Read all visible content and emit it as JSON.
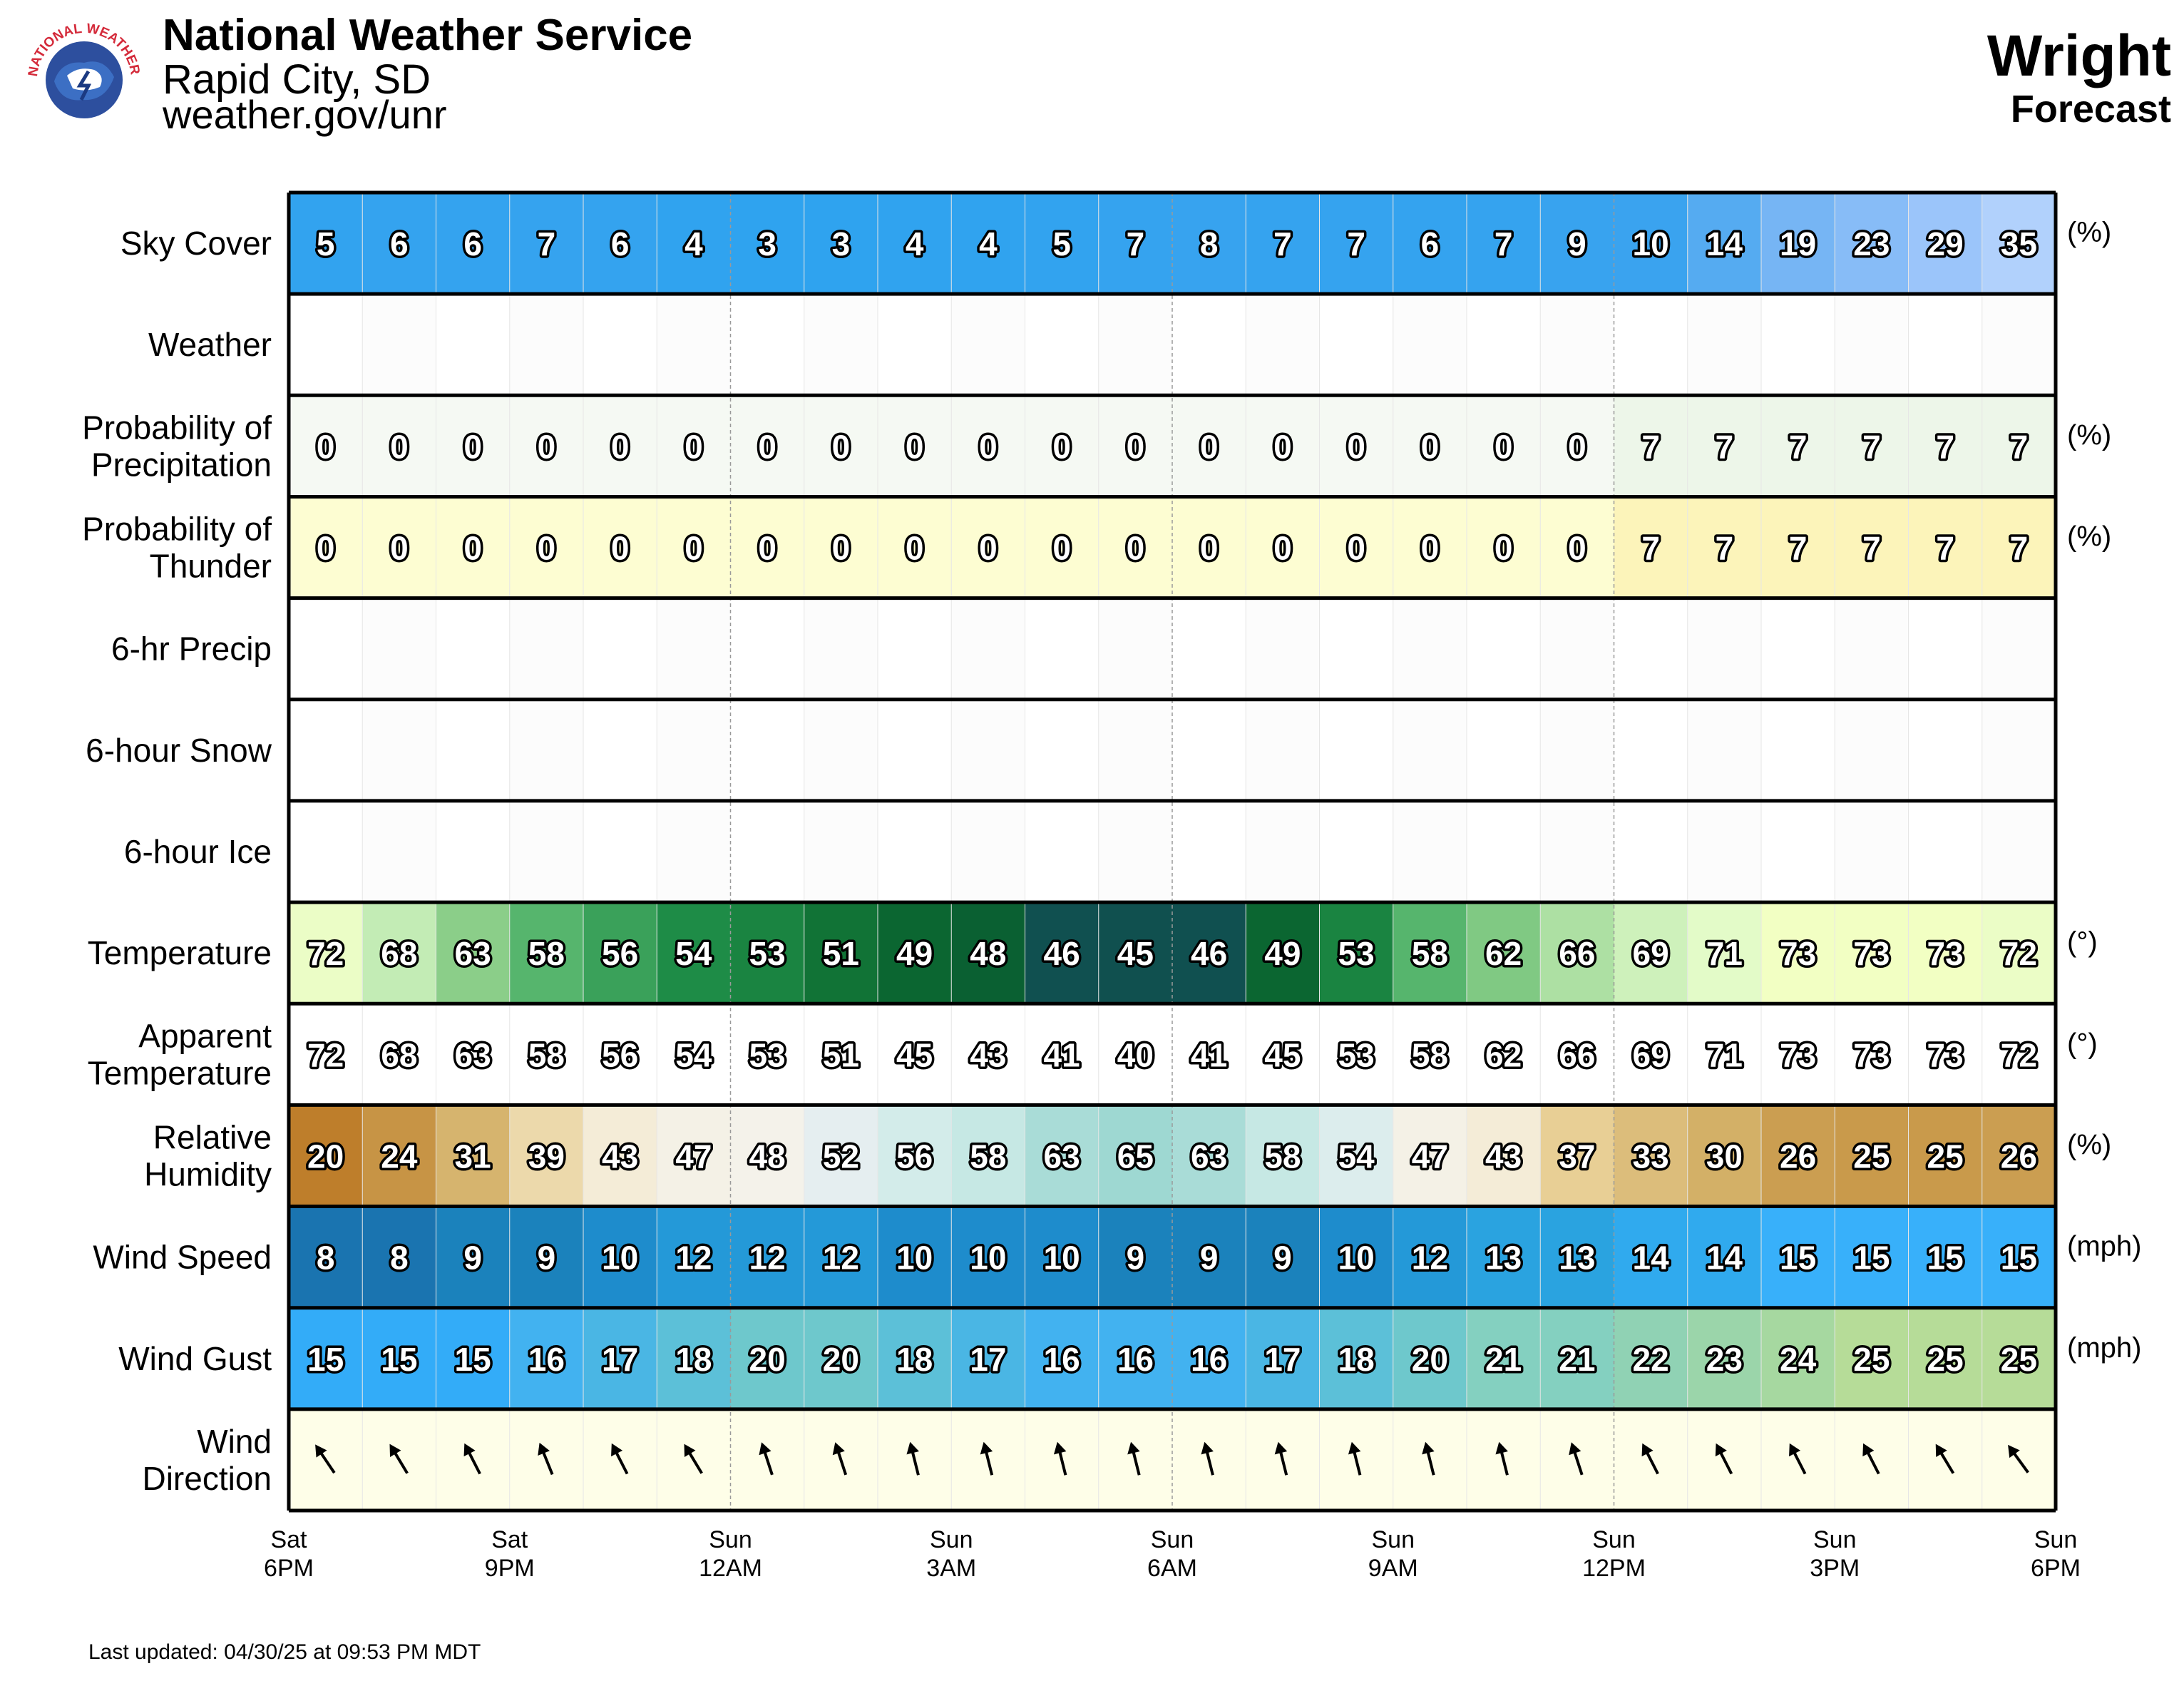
{
  "header": {
    "agency": "National Weather Service",
    "office": "Rapid City, SD",
    "url": "weather.gov/unr",
    "location": "Wright",
    "subtitle": "Forecast",
    "logo_icon": "nws-logo-icon",
    "logo_text": "NATIONAL WEATHER SERVICE"
  },
  "footer": {
    "last_updated": "Last updated: 04/30/25 at 09:53 PM MDT"
  },
  "chart_data": {
    "type": "table",
    "x_ticks": [
      {
        "day": "Sat",
        "time": "6PM"
      },
      {
        "day": "Sat",
        "time": "9PM"
      },
      {
        "day": "Sun",
        "time": "12AM"
      },
      {
        "day": "Sun",
        "time": "3AM"
      },
      {
        "day": "Sun",
        "time": "6AM"
      },
      {
        "day": "Sun",
        "time": "9AM"
      },
      {
        "day": "Sun",
        "time": "12PM"
      },
      {
        "day": "Sun",
        "time": "3PM"
      },
      {
        "day": "Sun",
        "time": "6PM"
      }
    ],
    "hours_per_column": 1,
    "rows": [
      {
        "label": [
          "Sky Cover"
        ],
        "unit": "(%)",
        "kind": "sky",
        "values": [
          5,
          6,
          6,
          7,
          6,
          4,
          3,
          3,
          4,
          4,
          5,
          7,
          8,
          7,
          7,
          6,
          7,
          9,
          10,
          14,
          19,
          23,
          29,
          35
        ]
      },
      {
        "label": [
          "Weather"
        ],
        "unit": "",
        "kind": "blank",
        "values": []
      },
      {
        "label": [
          "Probability of",
          "Precipitation"
        ],
        "unit": "(%)",
        "kind": "pop",
        "values": [
          0,
          0,
          0,
          0,
          0,
          0,
          0,
          0,
          0,
          0,
          0,
          0,
          0,
          0,
          0,
          0,
          0,
          0,
          7,
          7,
          7,
          7,
          7,
          7
        ]
      },
      {
        "label": [
          "Probability of",
          "Thunder"
        ],
        "unit": "(%)",
        "kind": "thunder",
        "values": [
          0,
          0,
          0,
          0,
          0,
          0,
          0,
          0,
          0,
          0,
          0,
          0,
          0,
          0,
          0,
          0,
          0,
          0,
          7,
          7,
          7,
          7,
          7,
          7
        ]
      },
      {
        "label": [
          "6-hr Precip"
        ],
        "unit": "",
        "kind": "blank",
        "values": []
      },
      {
        "label": [
          "6-hour Snow"
        ],
        "unit": "",
        "kind": "blank",
        "values": []
      },
      {
        "label": [
          "6-hour Ice"
        ],
        "unit": "",
        "kind": "blank",
        "values": []
      },
      {
        "label": [
          "Temperature"
        ],
        "unit": "(°)",
        "kind": "temp",
        "values": [
          72,
          68,
          63,
          58,
          56,
          54,
          53,
          51,
          49,
          48,
          46,
          45,
          46,
          49,
          53,
          58,
          62,
          66,
          69,
          71,
          73,
          73,
          73,
          72
        ]
      },
      {
        "label": [
          "Apparent",
          "Temperature"
        ],
        "unit": "(°)",
        "kind": "apparent",
        "values": [
          72,
          68,
          63,
          58,
          56,
          54,
          53,
          51,
          45,
          43,
          41,
          40,
          41,
          45,
          53,
          58,
          62,
          66,
          69,
          71,
          73,
          73,
          73,
          72
        ]
      },
      {
        "label": [
          "Relative",
          "Humidity"
        ],
        "unit": "(%)",
        "kind": "rh",
        "values": [
          20,
          24,
          31,
          39,
          43,
          47,
          48,
          52,
          56,
          58,
          63,
          65,
          63,
          58,
          54,
          47,
          43,
          37,
          33,
          30,
          26,
          25,
          25,
          26
        ]
      },
      {
        "label": [
          "Wind Speed"
        ],
        "unit": "(mph)",
        "kind": "wind",
        "values": [
          8,
          8,
          9,
          9,
          10,
          12,
          12,
          12,
          10,
          10,
          10,
          9,
          9,
          9,
          10,
          12,
          13,
          13,
          14,
          14,
          15,
          15,
          15,
          15
        ]
      },
      {
        "label": [
          "Wind Gust"
        ],
        "unit": "(mph)",
        "kind": "gust",
        "values": [
          15,
          15,
          15,
          16,
          17,
          18,
          20,
          20,
          18,
          17,
          16,
          16,
          16,
          17,
          18,
          20,
          21,
          21,
          22,
          23,
          24,
          25,
          25,
          25
        ]
      },
      {
        "label": [
          "Wind",
          "Direction"
        ],
        "unit": "",
        "kind": "dir",
        "values": [
          146,
          149,
          153,
          158,
          153,
          149,
          162,
          162,
          166,
          166,
          166,
          166,
          166,
          166,
          166,
          166,
          166,
          162,
          153,
          153,
          153,
          153,
          149,
          144
        ]
      }
    ]
  }
}
